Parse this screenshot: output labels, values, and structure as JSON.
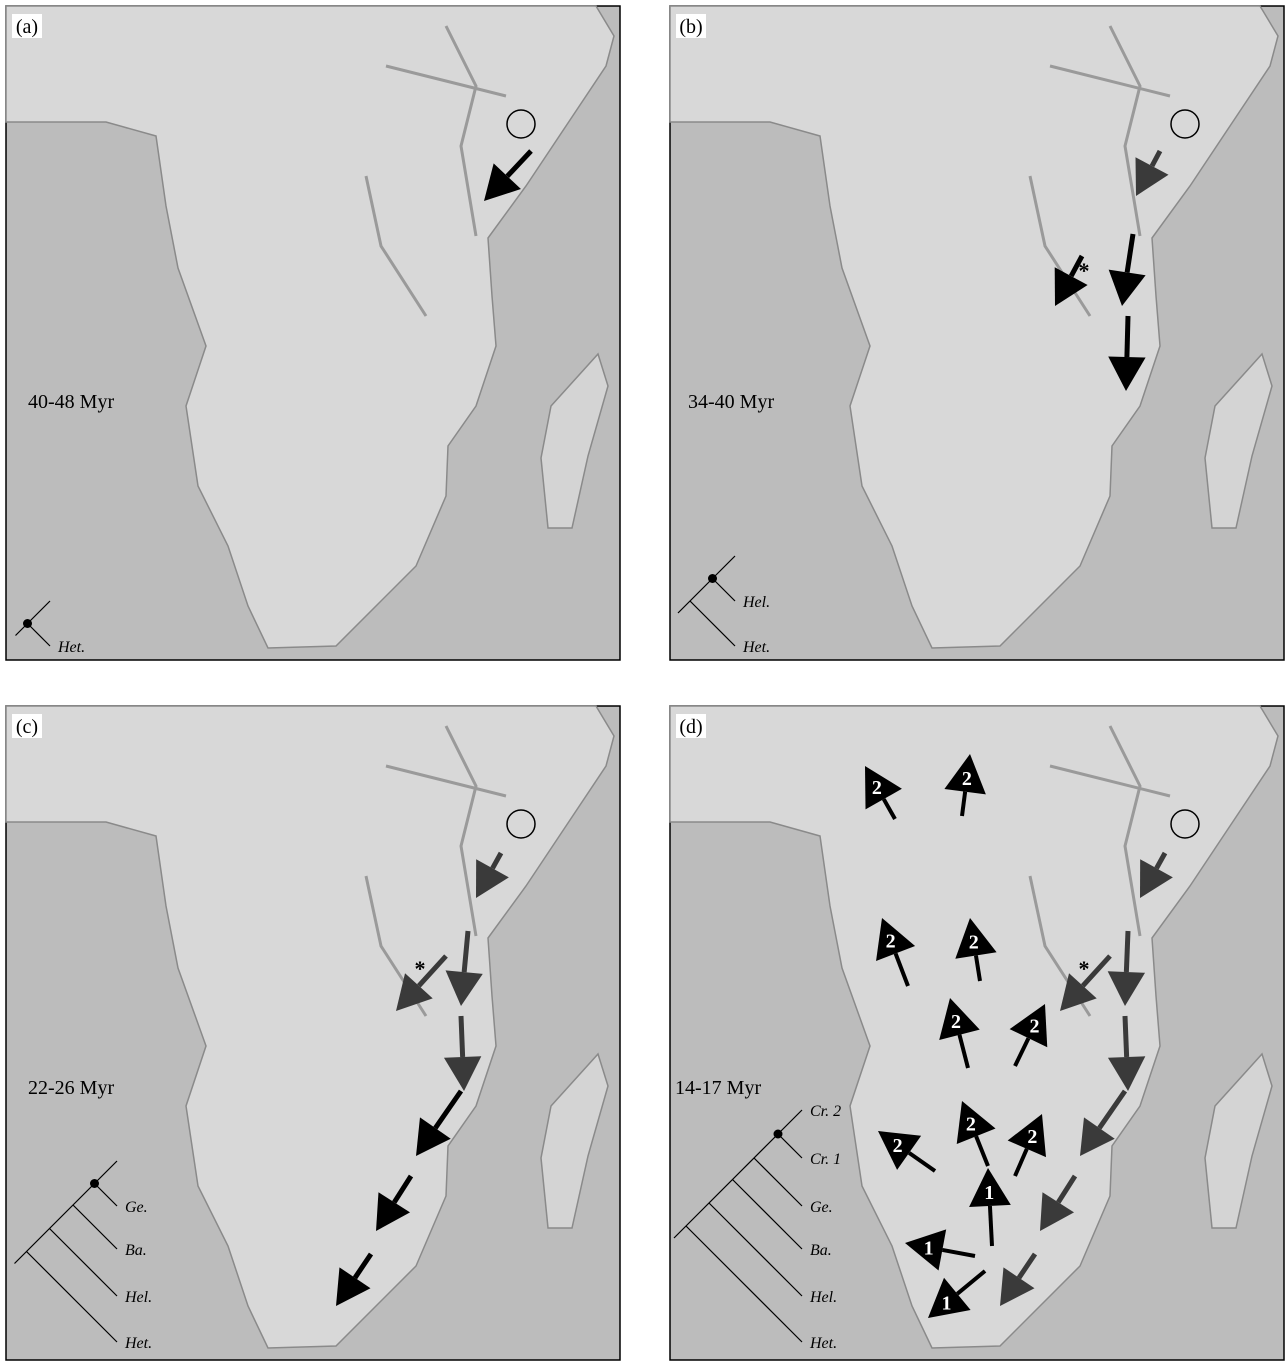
{
  "panels": [
    {
      "label": "(a)",
      "period": "40-48 Myr",
      "taxa": [
        "Het."
      ]
    },
    {
      "label": "(b)",
      "period": "34-40 Myr",
      "taxa": [
        "Hel.",
        "Het."
      ],
      "asterisk": "*"
    },
    {
      "label": "(c)",
      "period": "22-26 Myr",
      "taxa": [
        "Ge.",
        "Ba.",
        "Hel.",
        "Het."
      ],
      "asterisk": "*"
    },
    {
      "label": "(d)",
      "period": "14-17 Myr",
      "taxa": [
        "Cr. 2",
        "Cr. 1",
        "Ge.",
        "Ba.",
        "Hel.",
        "Het."
      ],
      "asterisk": "*",
      "arrow_labels": [
        "2",
        "2",
        "2",
        "2",
        "2",
        "2",
        "2",
        "2",
        "2",
        "1",
        "1",
        "1"
      ]
    }
  ]
}
